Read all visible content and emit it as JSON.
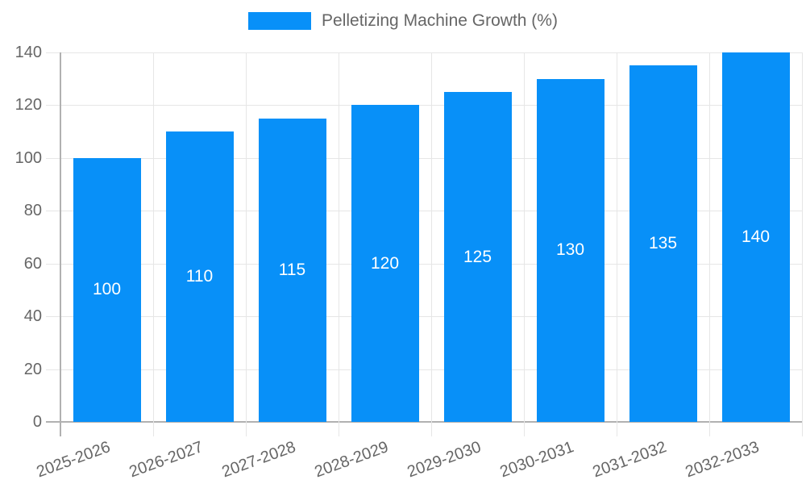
{
  "legend": {
    "label": "Pelletizing Machine Growth (%)"
  },
  "chart_data": {
    "type": "bar",
    "title": "Pelletizing Machine Growth (%)",
    "categories": [
      "2025-2026",
      "2026-2027",
      "2027-2028",
      "2028-2029",
      "2029-2030",
      "2030-2031",
      "2031-2032",
      "2032-2033"
    ],
    "values": [
      100,
      110,
      115,
      120,
      125,
      130,
      135,
      140
    ],
    "value_labels": [
      "100",
      "110",
      "115",
      "120",
      "125",
      "130",
      "135",
      "140"
    ],
    "series_name": "Pelletizing Machine Growth (%)",
    "xlabel": "",
    "ylabel": "",
    "ylim": [
      0,
      140
    ],
    "y_ticks": [
      0,
      20,
      40,
      60,
      80,
      100,
      120,
      140
    ],
    "grid": true,
    "legend_position": "top",
    "x_label_rotation_deg": -20,
    "colors": {
      "bar": "#0890f8",
      "gridline": "#e6e6e6",
      "axis_line": "#b1b1b1",
      "axis_text": "#666666",
      "value_label": "#ffffff",
      "background": "#ffffff"
    }
  }
}
